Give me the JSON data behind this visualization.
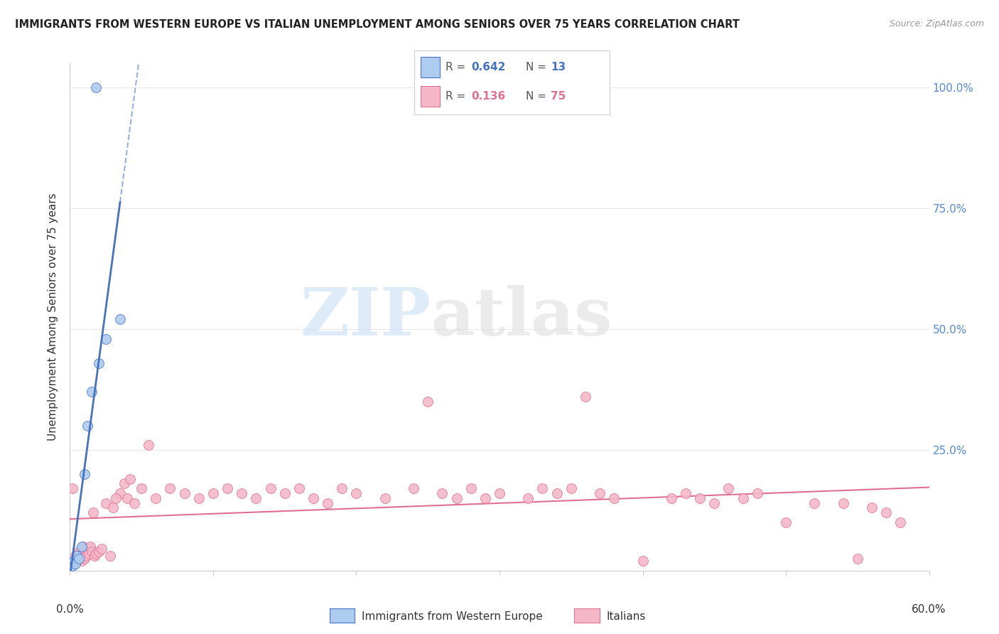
{
  "title": "IMMIGRANTS FROM WESTERN EUROPE VS ITALIAN UNEMPLOYMENT AMONG SENIORS OVER 75 YEARS CORRELATION CHART",
  "source": "Source: ZipAtlas.com",
  "ylabel": "Unemployment Among Seniors over 75 years",
  "legend_blue_label": "Immigrants from Western Europe",
  "legend_pink_label": "Italians",
  "blue_color": "#aecbf0",
  "blue_line_color": "#4472c4",
  "pink_color": "#f5b8c8",
  "pink_line_color": "#e07090",
  "watermark_zip": "ZIP",
  "watermark_atlas": "atlas",
  "blue_scatter_x": [
    0.2,
    0.3,
    0.4,
    0.5,
    0.6,
    0.8,
    1.0,
    1.2,
    1.5,
    2.0,
    2.5,
    3.5,
    1.8
  ],
  "blue_scatter_y": [
    1.0,
    2.0,
    1.5,
    3.0,
    2.5,
    5.0,
    20.0,
    30.0,
    37.0,
    43.0,
    48.0,
    52.0,
    100.0
  ],
  "pink_scatter_x": [
    0.2,
    0.3,
    0.4,
    0.5,
    0.6,
    0.7,
    0.8,
    0.9,
    1.0,
    1.1,
    1.2,
    1.3,
    1.4,
    1.5,
    1.6,
    1.7,
    1.8,
    2.0,
    2.2,
    2.5,
    2.8,
    3.0,
    3.5,
    4.0,
    4.5,
    5.0,
    5.5,
    6.0,
    7.0,
    8.0,
    9.0,
    10.0,
    11.0,
    12.0,
    13.0,
    14.0,
    15.0,
    16.0,
    17.0,
    18.0,
    20.0,
    22.0,
    24.0,
    25.0,
    26.0,
    27.0,
    28.0,
    29.0,
    30.0,
    32.0,
    33.0,
    34.0,
    35.0,
    36.0,
    37.0,
    38.0,
    40.0,
    42.0,
    43.0,
    44.0,
    45.0,
    46.0,
    47.0,
    48.0,
    50.0,
    52.0,
    54.0,
    55.0,
    56.0,
    57.0,
    58.0,
    3.2,
    3.8,
    4.2,
    19.0
  ],
  "pink_scatter_y": [
    17.0,
    1.5,
    3.0,
    2.0,
    4.0,
    3.5,
    2.0,
    5.0,
    2.5,
    3.0,
    4.5,
    3.5,
    5.0,
    4.0,
    12.0,
    3.0,
    3.5,
    4.0,
    4.5,
    14.0,
    3.0,
    13.0,
    16.0,
    15.0,
    14.0,
    17.0,
    26.0,
    15.0,
    17.0,
    16.0,
    15.0,
    16.0,
    17.0,
    16.0,
    15.0,
    17.0,
    16.0,
    17.0,
    15.0,
    14.0,
    16.0,
    15.0,
    17.0,
    35.0,
    16.0,
    15.0,
    17.0,
    15.0,
    16.0,
    15.0,
    17.0,
    16.0,
    17.0,
    36.0,
    16.0,
    15.0,
    2.0,
    15.0,
    16.0,
    15.0,
    14.0,
    17.0,
    15.0,
    16.0,
    10.0,
    14.0,
    14.0,
    2.5,
    13.0,
    12.0,
    10.0,
    15.0,
    18.0,
    19.0,
    17.0
  ],
  "xlim": [
    0,
    60
  ],
  "ylim": [
    0,
    105
  ],
  "ytick_vals": [
    0,
    25,
    50,
    75,
    100
  ],
  "ytick_labels_right": [
    "25.0%",
    "50.0%",
    "75.0%",
    "100.0%"
  ],
  "grid_color": "#e8e8e8",
  "background": "#ffffff"
}
